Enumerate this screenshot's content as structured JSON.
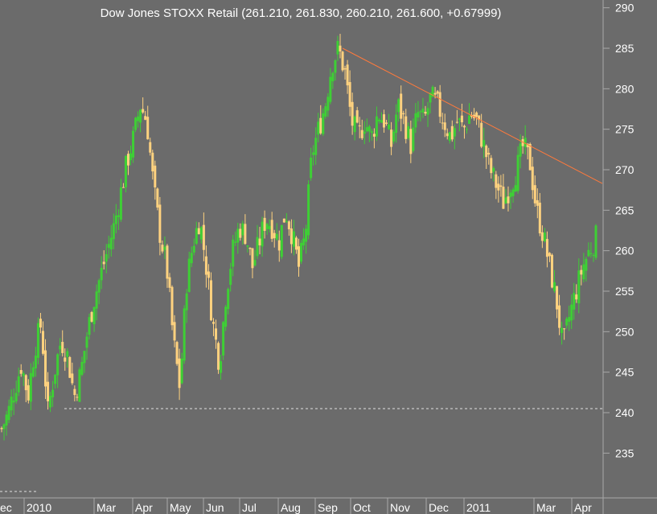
{
  "chart_data": {
    "type": "candlestick",
    "title": "Dow Jones STOXX Retail (261.210, 261.830, 260.210, 261.600, +0.67999)",
    "ylim": [
      228,
      292
    ],
    "y_ticks": [
      235,
      240,
      245,
      250,
      255,
      260,
      265,
      270,
      275,
      280,
      285,
      290
    ],
    "x_ticks": [
      "ec",
      "2010",
      "Mar",
      "Apr",
      "May",
      "Jun",
      "Jul",
      "Aug",
      "Sep",
      "Oct",
      "Nov",
      "Dec",
      "2011",
      "Mar",
      "Apr"
    ],
    "support_line": 240.5,
    "trendline": {
      "from": [
        "Sep 2010",
        285.0
      ],
      "to": [
        "Apr 2011",
        268.3
      ]
    },
    "close_path": [
      238,
      240,
      243,
      246,
      242,
      248,
      251,
      240,
      245,
      249,
      247,
      242,
      245,
      250,
      254,
      257,
      260,
      263,
      267,
      271,
      274,
      278,
      276,
      268,
      262,
      258,
      249,
      243,
      256,
      261,
      264,
      258,
      251,
      246,
      255,
      260,
      263,
      262,
      258,
      261,
      264,
      263,
      261,
      265,
      262,
      258,
      262,
      272,
      275,
      278,
      283,
      285,
      282,
      276,
      274,
      276,
      274,
      277,
      276,
      273,
      278,
      276,
      273,
      277,
      276,
      279,
      278,
      276,
      274,
      276,
      275,
      277,
      276,
      273,
      270,
      268,
      266,
      268,
      270,
      273,
      271,
      265,
      262,
      258,
      254,
      248,
      252,
      255,
      258,
      260,
      261.6
    ],
    "colors": {
      "up": "#3ecf35",
      "down": "#ffd27f",
      "background": "#6b6b6b",
      "trendline": "#ff7a3c",
      "support": "#e0e0e0"
    }
  }
}
